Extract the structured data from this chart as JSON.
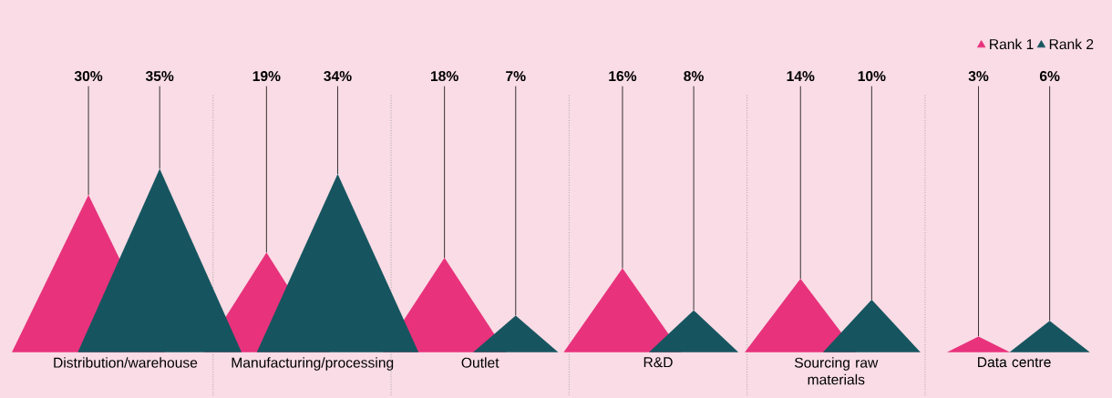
{
  "chart_data": {
    "type": "other",
    "categories": [
      "Distribution/warehouse",
      "Manufacturing/processing",
      "Outlet",
      "R&D",
      "Sourcing raw materials",
      "Data centre"
    ],
    "series": [
      {
        "name": "Rank 1",
        "color": "#e8327c",
        "values": [
          30,
          19,
          18,
          16,
          14,
          3
        ],
        "value_labels": [
          "30%",
          "19%",
          "18%",
          "16%",
          "14%",
          "3%"
        ]
      },
      {
        "name": "Rank 2",
        "color": "#165560",
        "values": [
          35,
          34,
          7,
          8,
          10,
          6
        ],
        "value_labels": [
          "35%",
          "34%",
          "7%",
          "8%",
          "10%",
          "6%"
        ]
      }
    ],
    "legend": "top right"
  }
}
